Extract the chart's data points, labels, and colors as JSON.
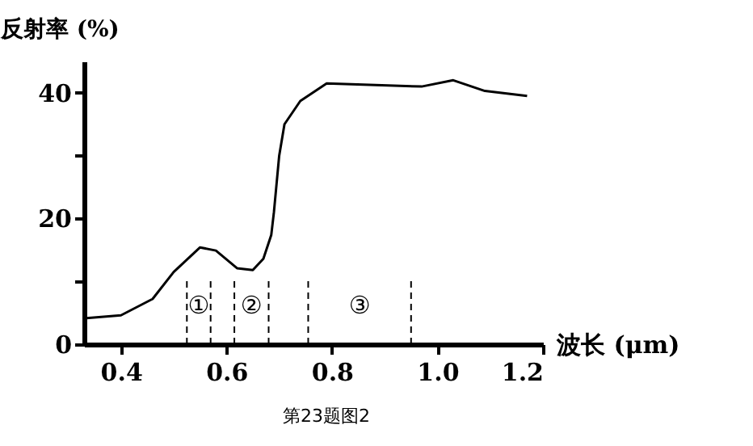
{
  "chart_data": {
    "type": "line",
    "ylabel": "反射率 (%)",
    "xlabel": "波长 (μm)",
    "x": [
      0.33,
      0.4,
      0.46,
      0.5,
      0.55,
      0.58,
      0.62,
      0.65,
      0.67,
      0.685,
      0.69,
      0.7,
      0.71,
      0.74,
      0.79,
      0.86,
      0.97,
      1.03,
      1.09,
      1.17
    ],
    "series": [
      {
        "color": "#000000",
        "values": [
          4.1,
          4.6,
          7.2,
          11.5,
          15.4,
          14.9,
          12.1,
          11.8,
          13.6,
          17.4,
          21,
          30,
          35,
          38.7,
          41.5,
          41.3,
          41,
          42,
          40.3,
          39.5
        ]
      }
    ],
    "xlim": [
      0.33,
      1.2
    ],
    "xticks": [
      0.4,
      0.6,
      0.8,
      {
        "value": 1.0,
        "label": "1.0"
      },
      1.2
    ],
    "ylim": [
      0,
      45
    ],
    "yticks": [
      0,
      {
        "value": 10,
        "label": null
      },
      20,
      {
        "value": 30,
        "label": null
      },
      40
    ],
    "ref_lines": [
      {
        "axis": "x",
        "value": 0.525,
        "line_style": "dashed"
      },
      {
        "axis": "x",
        "value": 0.57,
        "line_style": "dashed"
      },
      {
        "axis": "x",
        "value": 0.615,
        "line_style": "dashed"
      },
      {
        "axis": "x",
        "value": 0.68,
        "line_style": "dashed"
      },
      {
        "axis": "x",
        "value": 0.755,
        "line_style": "dashed"
      },
      {
        "axis": "x",
        "value": 0.95,
        "line_style": "dashed"
      }
    ],
    "annotations": [
      "①",
      "②",
      "③",
      "第23题图2"
    ],
    "grid": false,
    "marker": "none",
    "line_style": "solid"
  }
}
